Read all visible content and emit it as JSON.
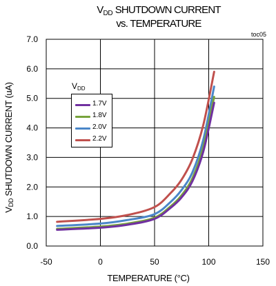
{
  "chart_data": {
    "type": "line",
    "title_main": "V",
    "title_sub": "DD",
    "title_rest": " SHUTDOWN CURRENT",
    "title_line2": "vs. TEMPERATURE",
    "tag": "toc05",
    "ylabel_main": "V",
    "ylabel_sub": "DD",
    "ylabel_rest": " SHUTDOWN CURRENT (uA)",
    "xlabel": "TEMPERATURE (°C)",
    "xlim": [
      -50,
      150
    ],
    "ylim": [
      0,
      7
    ],
    "xticks": [
      "-50",
      "0",
      "50",
      "100",
      "150"
    ],
    "yticks": [
      "0.0",
      "1.0",
      "2.0",
      "3.0",
      "4.0",
      "5.0",
      "6.0",
      "7.0"
    ],
    "grid": true,
    "legend_title_main": "V",
    "legend_title_sub": "DD",
    "legend_position": "top-left",
    "series": [
      {
        "name": "1.7V",
        "color": "#7030a0",
        "points": [
          [
            -40,
            0.55
          ],
          [
            0,
            0.62
          ],
          [
            25,
            0.72
          ],
          [
            50,
            0.92
          ],
          [
            65,
            1.3
          ],
          [
            75,
            1.65
          ],
          [
            85,
            2.2
          ],
          [
            95,
            3.2
          ],
          [
            105,
            4.85
          ]
        ]
      },
      {
        "name": "1.8V",
        "color": "#77a33b",
        "points": [
          [
            -40,
            0.58
          ],
          [
            0,
            0.66
          ],
          [
            25,
            0.76
          ],
          [
            50,
            0.96
          ],
          [
            65,
            1.35
          ],
          [
            75,
            1.72
          ],
          [
            85,
            2.3
          ],
          [
            95,
            3.35
          ],
          [
            105,
            5.05
          ]
        ]
      },
      {
        "name": "2.0V",
        "color": "#4a86c8",
        "points": [
          [
            -40,
            0.68
          ],
          [
            0,
            0.76
          ],
          [
            25,
            0.88
          ],
          [
            50,
            1.08
          ],
          [
            65,
            1.5
          ],
          [
            75,
            1.9
          ],
          [
            85,
            2.5
          ],
          [
            95,
            3.6
          ],
          [
            105,
            5.4
          ]
        ]
      },
      {
        "name": "2.2V",
        "color": "#c0504d",
        "points": [
          [
            -40,
            0.82
          ],
          [
            0,
            0.92
          ],
          [
            25,
            1.05
          ],
          [
            50,
            1.32
          ],
          [
            65,
            1.8
          ],
          [
            75,
            2.25
          ],
          [
            85,
            2.95
          ],
          [
            95,
            4.1
          ],
          [
            105,
            5.9
          ]
        ]
      }
    ]
  }
}
